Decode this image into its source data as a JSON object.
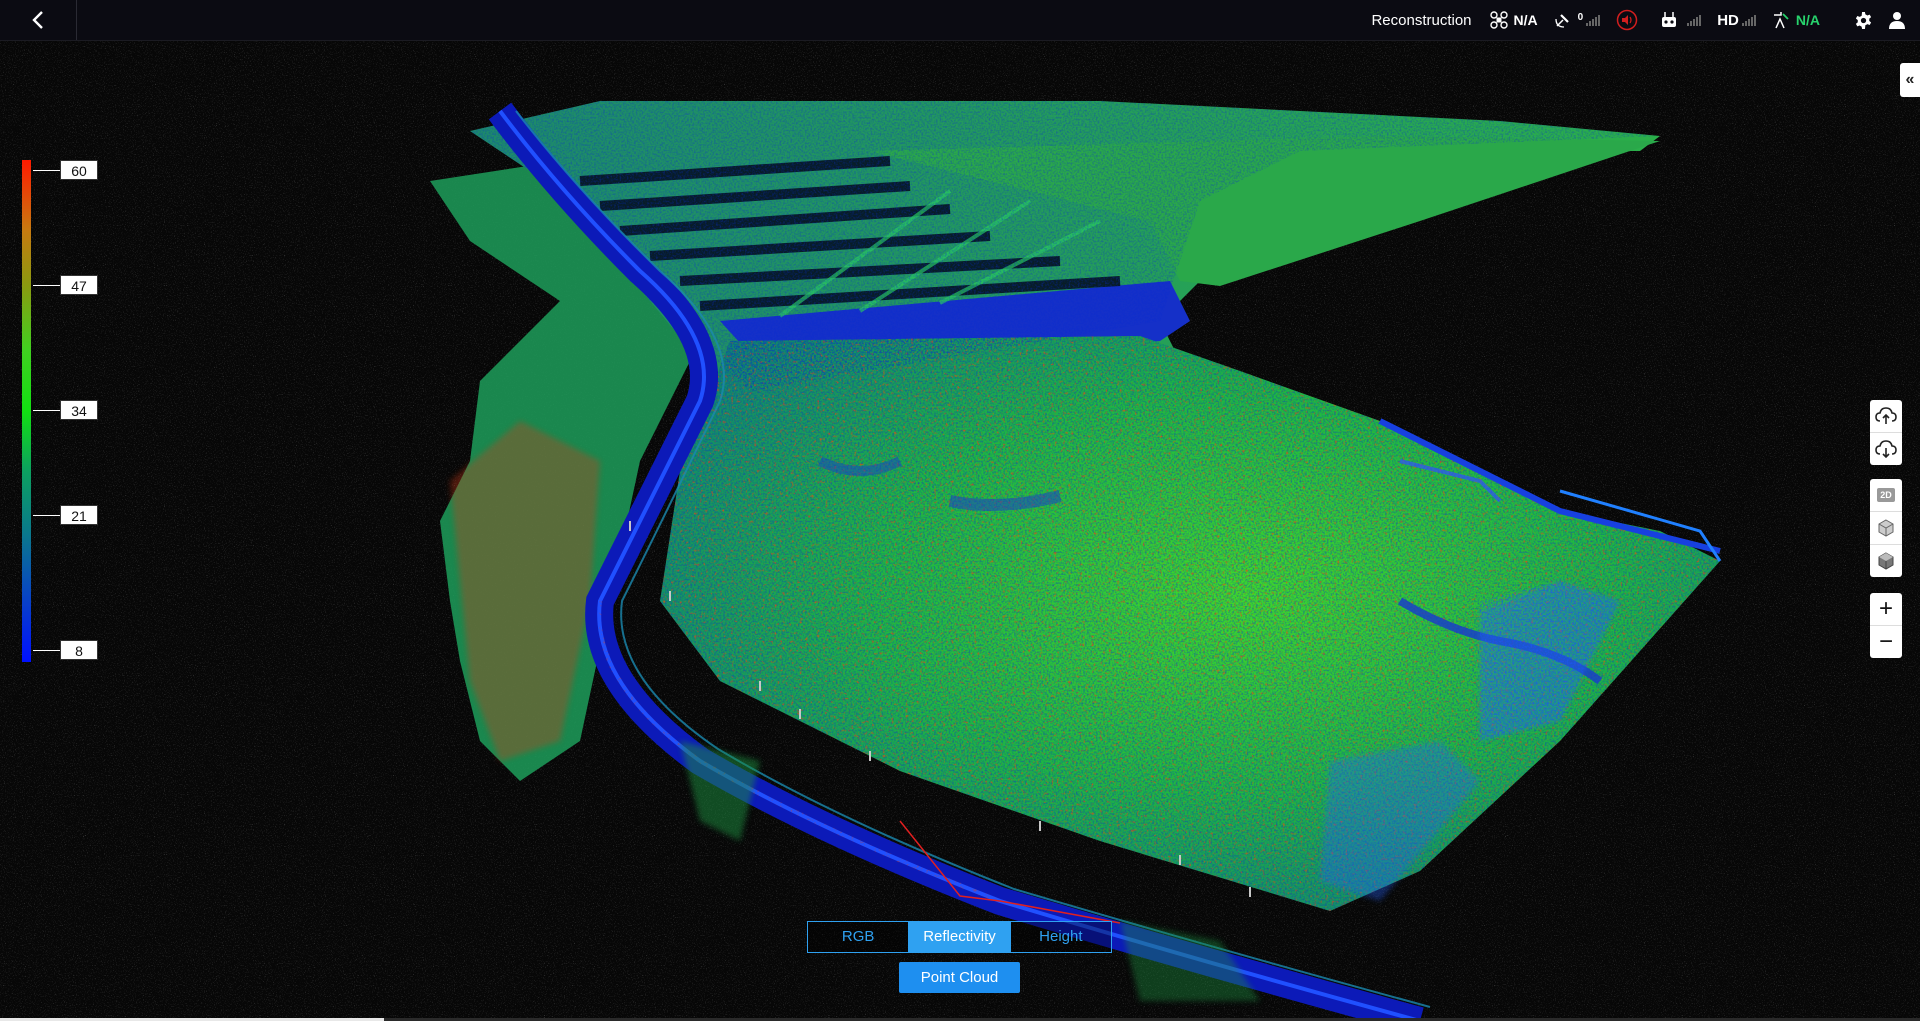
{
  "header": {
    "mode_label": "Reconstruction",
    "drone_status": "N/A",
    "gps_count": "0",
    "video_label": "HD",
    "rtk_status": "N/A"
  },
  "legend": {
    "labels": [
      "60",
      "47",
      "34",
      "21",
      "8"
    ]
  },
  "view_modes": {
    "options": [
      "RGB",
      "Reflectivity",
      "Height"
    ],
    "selected": "Reflectivity"
  },
  "point_cloud_button": "Point Cloud",
  "right_tools": {
    "icons": [
      "cloud-upload-icon",
      "cloud-download-icon",
      "view-2d-icon",
      "view-3d-icon",
      "view-3d-solid-icon",
      "zoom-in-icon",
      "zoom-out-icon"
    ]
  },
  "colors": {
    "accent": "#2fa1f1",
    "topbar": "#0b0b12",
    "rtk_ok": "#27d36c",
    "alert": "#d21e1e"
  },
  "progress": {
    "fraction": 0.2
  }
}
